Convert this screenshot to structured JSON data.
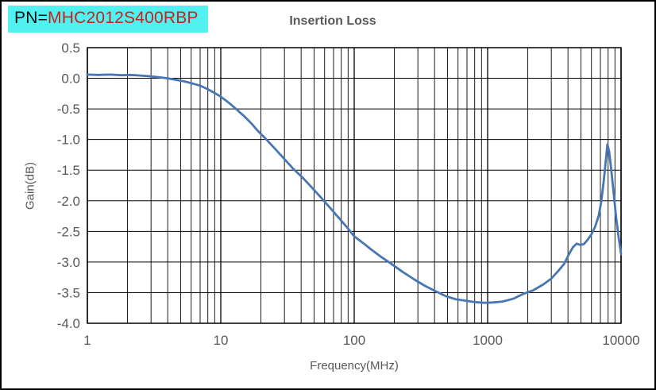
{
  "pn_label": {
    "prefix": "PN=",
    "part_number": "MHC2012S400RBP"
  },
  "title": "Insertion Loss",
  "colors": {
    "curve": "#4876B4",
    "grid": "#000000",
    "plot_border": "#000000",
    "tick_label": "#595959",
    "title_text": "#595959",
    "pn_background": "#52F1F1",
    "pn_part_number": "#C82120",
    "frame_border": "#000000"
  },
  "chart_data": {
    "type": "line",
    "title": "Insertion Loss",
    "xlabel": "Frequency(MHz)",
    "ylabel": "Gain(dB)",
    "x_scale": "log",
    "xlim": [
      1,
      10000
    ],
    "ylim": [
      -4.0,
      0.5
    ],
    "x_ticks": [
      1,
      10,
      100,
      1000,
      10000
    ],
    "x_tick_labels": [
      "1",
      "10",
      "100",
      "1000",
      "10000"
    ],
    "y_ticks": [
      0.5,
      0.0,
      -0.5,
      -1.0,
      -1.5,
      -2.0,
      -2.5,
      -3.0,
      -3.5,
      -4.0
    ],
    "y_tick_labels": [
      "0.5",
      "0.0",
      "-0.5",
      "-1.0",
      "-1.5",
      "-2.0",
      "-2.5",
      "-3.0",
      "-3.5",
      "-4.0"
    ],
    "grid": "log minor + major, black",
    "legend": "none",
    "series": [
      {
        "name": "Insertion Loss",
        "color": "#4876B4",
        "points": [
          [
            1,
            0.06
          ],
          [
            1.2,
            0.055
          ],
          [
            1.5,
            0.06
          ],
          [
            1.8,
            0.05
          ],
          [
            2.1,
            0.055
          ],
          [
            2.5,
            0.045
          ],
          [
            3,
            0.03
          ],
          [
            3.5,
            0.015
          ],
          [
            4,
            0.0
          ],
          [
            4.6,
            -0.025
          ],
          [
            5.3,
            -0.05
          ],
          [
            6,
            -0.08
          ],
          [
            7,
            -0.12
          ],
          [
            8,
            -0.18
          ],
          [
            9,
            -0.24
          ],
          [
            10,
            -0.3
          ],
          [
            11.5,
            -0.4
          ],
          [
            13,
            -0.5
          ],
          [
            15,
            -0.62
          ],
          [
            17,
            -0.74
          ],
          [
            19,
            -0.86
          ],
          [
            22,
            -1.0
          ],
          [
            26,
            -1.17
          ],
          [
            30,
            -1.32
          ],
          [
            35,
            -1.48
          ],
          [
            41,
            -1.62
          ],
          [
            48,
            -1.78
          ],
          [
            56,
            -1.94
          ],
          [
            65,
            -2.1
          ],
          [
            76,
            -2.27
          ],
          [
            88,
            -2.43
          ],
          [
            100,
            -2.58
          ],
          [
            115,
            -2.68
          ],
          [
            135,
            -2.8
          ],
          [
            160,
            -2.92
          ],
          [
            190,
            -3.03
          ],
          [
            230,
            -3.16
          ],
          [
            280,
            -3.28
          ],
          [
            340,
            -3.39
          ],
          [
            410,
            -3.48
          ],
          [
            490,
            -3.56
          ],
          [
            580,
            -3.61
          ],
          [
            680,
            -3.63
          ],
          [
            800,
            -3.655
          ],
          [
            950,
            -3.665
          ],
          [
            1100,
            -3.66
          ],
          [
            1300,
            -3.645
          ],
          [
            1550,
            -3.6
          ],
          [
            1850,
            -3.52
          ],
          [
            2200,
            -3.46
          ],
          [
            2600,
            -3.37
          ],
          [
            3000,
            -3.27
          ],
          [
            3400,
            -3.14
          ],
          [
            3750,
            -3.03
          ],
          [
            4050,
            -2.88
          ],
          [
            4350,
            -2.76
          ],
          [
            4650,
            -2.7
          ],
          [
            4950,
            -2.72
          ],
          [
            5250,
            -2.71
          ],
          [
            5600,
            -2.64
          ],
          [
            6000,
            -2.55
          ],
          [
            6400,
            -2.42
          ],
          [
            6800,
            -2.24
          ],
          [
            7100,
            -2.02
          ],
          [
            7400,
            -1.7
          ],
          [
            7650,
            -1.38
          ],
          [
            7900,
            -1.08
          ],
          [
            8150,
            -1.2
          ],
          [
            8450,
            -1.5
          ],
          [
            8800,
            -1.88
          ],
          [
            9200,
            -2.28
          ],
          [
            9600,
            -2.6
          ],
          [
            10000,
            -2.87
          ]
        ]
      }
    ]
  }
}
